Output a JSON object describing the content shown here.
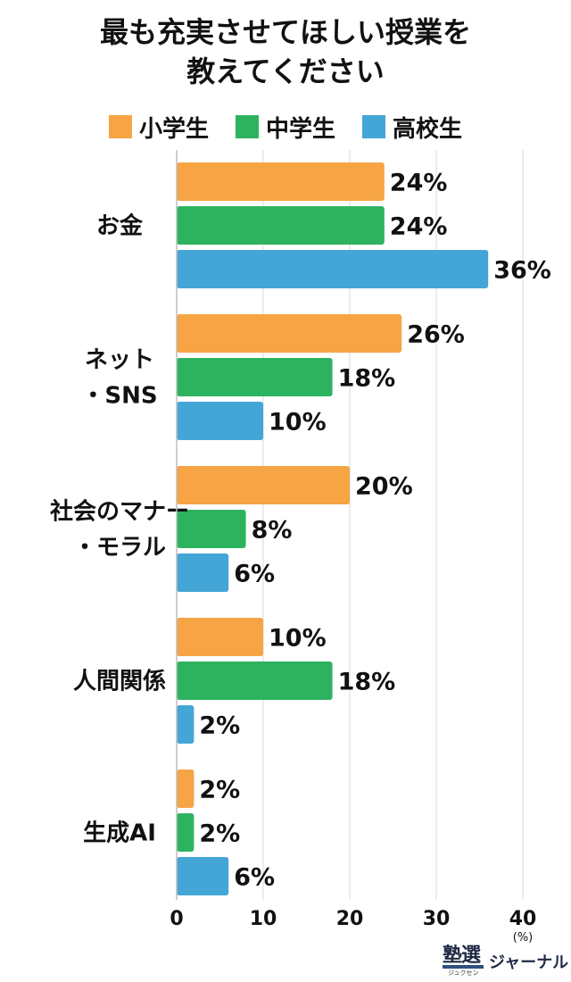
{
  "title_lines": [
    "最も充実させてほしい授業を",
    "教えてください"
  ],
  "logo": {
    "main": "塾選",
    "ruby": "ジュクセン",
    "sub": "ジャーナル"
  },
  "chart_data": {
    "type": "bar",
    "orientation": "horizontal",
    "title": "最も充実させてほしい授業を教えてください",
    "categories": [
      [
        "お金"
      ],
      [
        "ネット",
        "・SNS"
      ],
      [
        "社会のマナー",
        "・モラル"
      ],
      [
        "人間関係"
      ],
      [
        "生成AI"
      ]
    ],
    "series": [
      {
        "name": "小学生",
        "color": "#F6A444",
        "values": [
          24,
          26,
          20,
          10,
          2
        ],
        "labels": [
          "24%",
          "26%",
          "20%",
          "10%",
          "2%"
        ]
      },
      {
        "name": "中学生",
        "color": "#2DB35F",
        "values": [
          24,
          18,
          8,
          18,
          2
        ],
        "labels": [
          "24%",
          "18%",
          "8%",
          "18%",
          "2%"
        ]
      },
      {
        "name": "高校生",
        "color": "#44A6D6",
        "values": [
          36,
          10,
          6,
          2,
          6
        ],
        "labels": [
          "36%",
          "10%",
          "6%",
          "2%",
          "6%"
        ]
      }
    ],
    "xlim": [
      0,
      40
    ],
    "xticks": [
      "0",
      "10",
      "20",
      "30",
      "40"
    ],
    "x_unit": "(%)",
    "grid": true,
    "legend": "top"
  }
}
